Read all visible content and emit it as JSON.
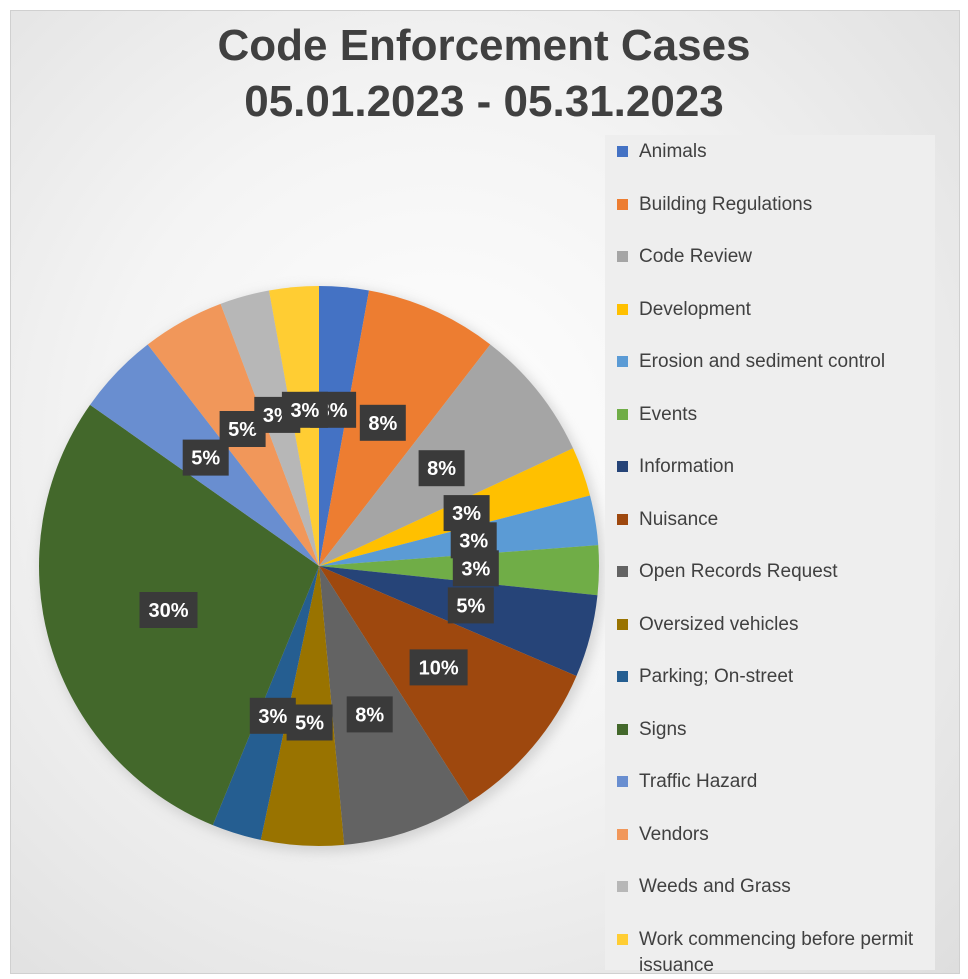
{
  "chart_data": {
    "type": "pie",
    "title_lines": [
      "Code Enforcement Cases",
      "05.01.2023 - 05.31.2023"
    ],
    "legend_position": "right",
    "data_label_format": "percent",
    "slices": [
      {
        "name": "Animals",
        "value": 3,
        "label": "3%",
        "color": "#4472C4"
      },
      {
        "name": "Building Regulations",
        "value": 8,
        "label": "8%",
        "color": "#ED7D31"
      },
      {
        "name": "Code Review",
        "value": 8,
        "label": "8%",
        "color": "#A5A5A5"
      },
      {
        "name": "Development",
        "value": 3,
        "label": "3%",
        "color": "#FFC000"
      },
      {
        "name": "Erosion and sediment control",
        "value": 3,
        "label": "3%",
        "color": "#5B9BD5"
      },
      {
        "name": "Events",
        "value": 3,
        "label": "3%",
        "color": "#70AD47"
      },
      {
        "name": "Information",
        "value": 5,
        "label": "5%",
        "color": "#264478"
      },
      {
        "name": "Nuisance",
        "value": 10,
        "label": "10%",
        "color": "#9E480E"
      },
      {
        "name": "Open Records Request",
        "value": 8,
        "label": "8%",
        "color": "#636363"
      },
      {
        "name": "Oversized vehicles",
        "value": 5,
        "label": "5%",
        "color": "#997300"
      },
      {
        "name": "Parking; On-street",
        "value": 3,
        "label": "3%",
        "color": "#255E91"
      },
      {
        "name": "Signs",
        "value": 30,
        "label": "30%",
        "color": "#43682B"
      },
      {
        "name": "Traffic Hazard",
        "value": 5,
        "label": "5%",
        "color": "#698ED0"
      },
      {
        "name": "Vendors",
        "value": 5,
        "label": "5%",
        "color": "#F1975A"
      },
      {
        "name": "Weeds and Grass",
        "value": 3,
        "label": "3%",
        "color": "#B7B7B7"
      },
      {
        "name": "Work commencing before permit issuance",
        "value": 3,
        "label": "3%",
        "color": "#FFCD33"
      }
    ]
  }
}
